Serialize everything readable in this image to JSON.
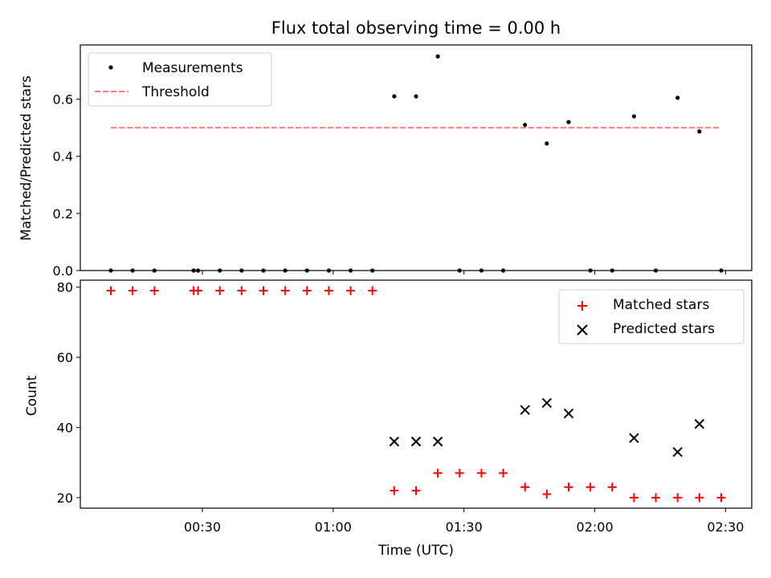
{
  "chart_data": [
    {
      "type": "scatter",
      "title": "Flux total observing time = 0.00 h",
      "xlabel": "",
      "ylabel": "Matched/Predicted stars",
      "xlim_minutes": [
        2,
        156
      ],
      "ylim": [
        0,
        0.79
      ],
      "yticks": [
        0.0,
        0.2,
        0.4,
        0.6
      ],
      "ytick_labels": [
        "0.0",
        "0.2",
        "0.4",
        "0.6"
      ],
      "xticks_minutes": [
        30,
        60,
        90,
        120,
        150
      ],
      "legend_position": "upper-left",
      "legend": [
        "Measurements",
        "Threshold"
      ],
      "series": [
        {
          "name": "Measurements",
          "color": "#000000",
          "marker": "dot",
          "x_minutes": [
            9,
            14,
            19,
            28,
            29,
            34,
            39,
            44,
            49,
            54,
            59,
            64,
            69,
            74,
            79,
            84,
            89,
            94,
            99,
            104,
            109,
            114,
            119,
            124,
            129,
            134,
            139,
            144,
            149
          ],
          "y": [
            0,
            0,
            0,
            0,
            0,
            0,
            0,
            0,
            0,
            0,
            0,
            0,
            0,
            0.61,
            0.61,
            0.75,
            0,
            0,
            0,
            0.51,
            0.445,
            0.52,
            0,
            0,
            0.54,
            0,
            0.605,
            0.487,
            0
          ]
        },
        {
          "name": "Threshold",
          "color": "#ff7f7f",
          "style": "dashed",
          "x_minutes": [
            9,
            149
          ],
          "y": [
            0.5,
            0.5
          ]
        }
      ]
    },
    {
      "type": "scatter",
      "xlabel": "Time (UTC)",
      "ylabel": "Count",
      "xlim_minutes": [
        2,
        156
      ],
      "ylim": [
        17,
        82
      ],
      "yticks": [
        20,
        40,
        60,
        80
      ],
      "ytick_labels": [
        "20",
        "40",
        "60",
        "80"
      ],
      "xticks_minutes": [
        30,
        60,
        90,
        120,
        150
      ],
      "xtick_labels": [
        "00:30",
        "01:00",
        "01:30",
        "02:00",
        "02:30"
      ],
      "legend_position": "upper-right",
      "legend": [
        "Matched stars",
        "Predicted stars"
      ],
      "series": [
        {
          "name": "Matched stars",
          "color": "#ff0000",
          "marker": "plus",
          "x_minutes": [
            9,
            14,
            19,
            28,
            29,
            34,
            39,
            44,
            49,
            54,
            59,
            64,
            69,
            74,
            79,
            84,
            89,
            94,
            99,
            104,
            109,
            114,
            119,
            124,
            129,
            134,
            139,
            144,
            149
          ],
          "y": [
            79,
            79,
            79,
            79,
            79,
            79,
            79,
            79,
            79,
            79,
            79,
            79,
            79,
            22,
            22,
            27,
            27,
            27,
            27,
            23,
            21,
            23,
            23,
            23,
            20,
            20,
            20,
            20,
            20
          ]
        },
        {
          "name": "Predicted stars",
          "color": "#000000",
          "marker": "cross",
          "x_minutes": [
            74,
            79,
            84,
            104,
            109,
            114,
            129,
            139,
            144
          ],
          "y": [
            36,
            36,
            36,
            45,
            47,
            44,
            37,
            33,
            41
          ]
        }
      ]
    }
  ]
}
